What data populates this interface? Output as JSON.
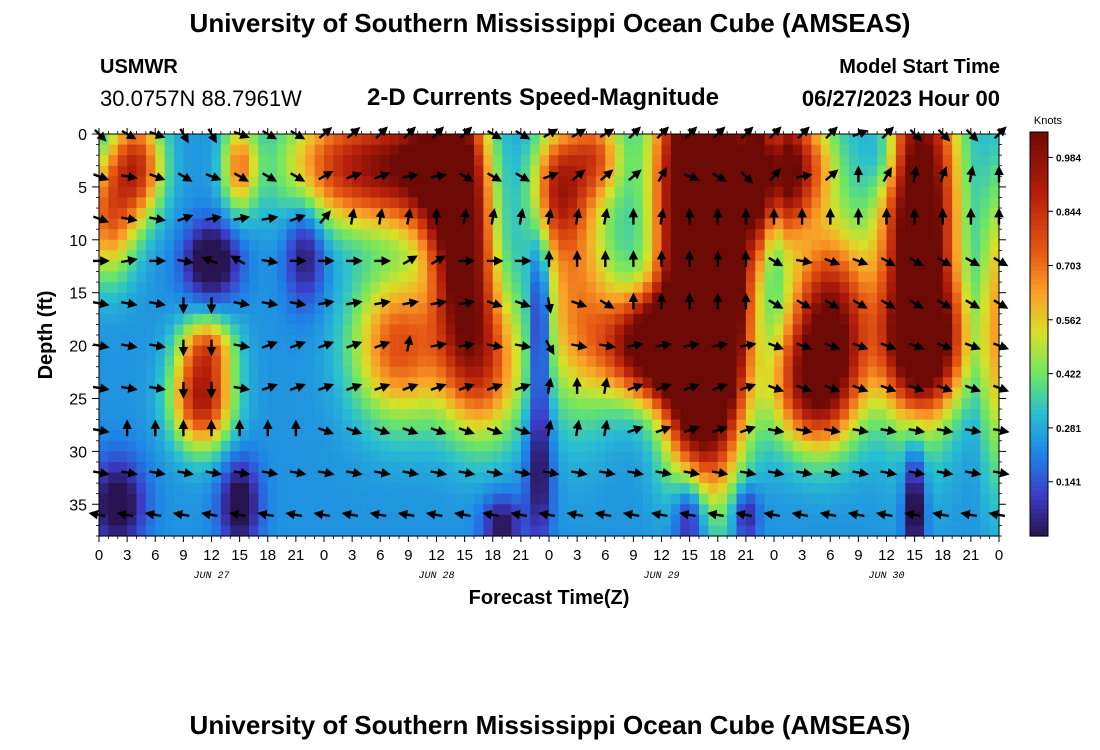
{
  "header": {
    "title": "University of Southern Mississippi Ocean Cube (AMSEAS)",
    "footer_title": "University of Southern Mississippi Ocean Cube (AMSEAS)",
    "station": "USMWR",
    "coords": "30.0757N  88.7961W",
    "subtitle": "2-D Currents Speed-Magnitude",
    "model_start_label": "Model Start Time",
    "model_start_value": "06/27/2023 Hour 00"
  },
  "chart_data": {
    "type": "heatmap",
    "title": "2-D Currents Speed-Magnitude",
    "xlabel": "Forecast Time(Z)",
    "ylabel": "Depth (ft)",
    "x_ticks": [
      "0",
      "3",
      "6",
      "9",
      "12",
      "15",
      "18",
      "21",
      "0",
      "3",
      "6",
      "9",
      "12",
      "15",
      "18",
      "21",
      "0",
      "3",
      "6",
      "9",
      "12",
      "15",
      "18",
      "21",
      "0",
      "3",
      "6",
      "9",
      "12",
      "15",
      "18",
      "21",
      "0"
    ],
    "date_labels": [
      {
        "label": "JUN 27",
        "hour": 12
      },
      {
        "label": "JUN 28",
        "hour": 36
      },
      {
        "label": "JUN 29",
        "hour": 60
      },
      {
        "label": "JUN 30",
        "hour": 84
      }
    ],
    "xlim_hours": [
      0,
      96
    ],
    "ylim_ft": [
      0,
      38
    ],
    "y_ticks": [
      0,
      5,
      10,
      15,
      20,
      25,
      30,
      35
    ],
    "colorbar": {
      "unit": "Knots",
      "min": 0.0,
      "max": 1.05,
      "tick_labels": [
        "0.984",
        "0.844",
        "0.703",
        "0.562",
        "0.422",
        "0.281",
        "0.141"
      ],
      "tick_values": [
        0.984,
        0.844,
        0.703,
        0.562,
        0.422,
        0.281,
        0.141
      ]
    },
    "speed_hotspots_knots": [
      {
        "t": 4,
        "d": 3,
        "v": 0.58,
        "st": 2.0,
        "sd": 3.5
      },
      {
        "t": 1,
        "d": 8,
        "v": 0.45,
        "st": 2.0,
        "sd": 4.0
      },
      {
        "t": 11,
        "d": 25,
        "v": 0.68,
        "st": 2.2,
        "sd": 3.2
      },
      {
        "t": 11.5,
        "d": 20,
        "v": 0.35,
        "st": 2.0,
        "sd": 2.0
      },
      {
        "t": 15,
        "d": 3,
        "v": 0.42,
        "st": 1.3,
        "sd": 3.0
      },
      {
        "t": 27,
        "d": 3,
        "v": 0.62,
        "st": 5.0,
        "sd": 4.0
      },
      {
        "t": 32,
        "d": 20,
        "v": 0.52,
        "st": 3.5,
        "sd": 5.0
      },
      {
        "t": 33,
        "d": 3,
        "v": 0.4,
        "st": 3.0,
        "sd": 4.0
      },
      {
        "t": 37.5,
        "d": 3,
        "v": 0.95,
        "st": 2.5,
        "sd": 5.5
      },
      {
        "t": 39,
        "d": 13,
        "v": 0.7,
        "st": 2.2,
        "sd": 6.0
      },
      {
        "t": 41,
        "d": 22,
        "v": 0.5,
        "st": 3.0,
        "sd": 5.0
      },
      {
        "t": 49,
        "d": 5,
        "v": 0.52,
        "st": 2.0,
        "sd": 4.0
      },
      {
        "t": 51,
        "d": 15,
        "v": 0.4,
        "st": 3.0,
        "sd": 8.0
      },
      {
        "t": 53,
        "d": 2,
        "v": 0.42,
        "st": 2.0,
        "sd": 3.0
      },
      {
        "t": 58,
        "d": 20,
        "v": 0.62,
        "st": 3.5,
        "sd": 3.5
      },
      {
        "t": 61,
        "d": 20,
        "v": 0.52,
        "st": 3.0,
        "sd": 3.0
      },
      {
        "t": 63.5,
        "d": 22,
        "v": 0.85,
        "st": 2.5,
        "sd": 7.0
      },
      {
        "t": 63.5,
        "d": 4,
        "v": 1.02,
        "st": 3.0,
        "sd": 9.0
      },
      {
        "t": 66,
        "d": 16,
        "v": 0.95,
        "st": 2.5,
        "sd": 10.0
      },
      {
        "t": 71,
        "d": 4,
        "v": 0.65,
        "st": 2.2,
        "sd": 5.0
      },
      {
        "t": 74,
        "d": 3,
        "v": 0.62,
        "st": 3.0,
        "sd": 4.0
      },
      {
        "t": 78,
        "d": 18,
        "v": 0.78,
        "st": 3.0,
        "sd": 6.0
      },
      {
        "t": 76,
        "d": 24,
        "v": 0.55,
        "st": 3.0,
        "sd": 4.0
      },
      {
        "t": 87.5,
        "d": 8,
        "v": 1.02,
        "st": 2.8,
        "sd": 11.0
      },
      {
        "t": 88,
        "d": 20,
        "v": 0.7,
        "st": 3.0,
        "sd": 4.0
      },
      {
        "t": 95.5,
        "d": 18,
        "v": 0.35,
        "st": 1.0,
        "sd": 10.0
      }
    ],
    "speed_lows_knots": [
      {
        "t": 12,
        "d": 12,
        "v": -0.35,
        "st": 2.0,
        "sd": 2.5
      },
      {
        "t": 22,
        "d": 11,
        "v": -0.25,
        "st": 1.5,
        "sd": 3.5
      },
      {
        "t": 47,
        "d": 18,
        "v": -0.35,
        "st": 0.8,
        "sd": 6.0
      },
      {
        "t": 47,
        "d": 32,
        "v": -0.25,
        "st": 1.0,
        "sd": 5.0
      },
      {
        "t": 72,
        "d": 4,
        "v": -0.35,
        "st": 0.8,
        "sd": 6.0
      },
      {
        "t": 84,
        "d": 2,
        "v": -0.2,
        "st": 1.5,
        "sd": 3.0
      },
      {
        "t": 2,
        "d": 35,
        "v": -0.3,
        "st": 2.0,
        "sd": 3.0
      },
      {
        "t": 15,
        "d": 35,
        "v": -0.3,
        "st": 1.5,
        "sd": 3.0
      },
      {
        "t": 43,
        "d": 37,
        "v": -0.25,
        "st": 1.5,
        "sd": 2.0
      },
      {
        "t": 63,
        "d": 36,
        "v": -0.3,
        "st": 1.2,
        "sd": 3.0
      },
      {
        "t": 69,
        "d": 36,
        "v": -0.25,
        "st": 1.0,
        "sd": 2.0
      },
      {
        "t": 87,
        "d": 35,
        "v": -0.35,
        "st": 0.8,
        "sd": 4.0
      }
    ],
    "vector_depths_ft": [
      0,
      4,
      8,
      12,
      16,
      20,
      24,
      28,
      32,
      36
    ],
    "vector_time_step_hours": 3,
    "vector_rows_direction_deg": [
      [
        -45,
        -30,
        -20,
        -60,
        -60,
        -20,
        -30,
        -30,
        40,
        40,
        45,
        45,
        45,
        45,
        -30,
        -30,
        30,
        30,
        30,
        45,
        45,
        45,
        45,
        45,
        45,
        45,
        45,
        20,
        45,
        -45,
        -45,
        -45,
        45
      ],
      [
        -20,
        -10,
        -20,
        -30,
        -20,
        -30,
        -30,
        -30,
        30,
        20,
        20,
        10,
        10,
        -30,
        -30,
        -30,
        20,
        40,
        40,
        40,
        60,
        -20,
        -30,
        -45,
        50,
        10,
        40,
        90,
        60,
        80,
        70,
        80,
        90
      ],
      [
        -20,
        -10,
        -10,
        20,
        10,
        10,
        10,
        20,
        50,
        80,
        80,
        80,
        90,
        80,
        80,
        80,
        80,
        80,
        80,
        90,
        80,
        90,
        90,
        90,
        90,
        90,
        90,
        90,
        90,
        90,
        90,
        90,
        90
      ],
      [
        0,
        10,
        0,
        -10,
        160,
        150,
        -10,
        0,
        0,
        0,
        0,
        30,
        30,
        0,
        0,
        0,
        90,
        90,
        90,
        90,
        90,
        90,
        90,
        90,
        -30,
        -10,
        -20,
        -20,
        -30,
        -30,
        -30,
        -30,
        -30
      ],
      [
        -10,
        -10,
        -10,
        -90,
        -90,
        -10,
        -10,
        -10,
        10,
        10,
        10,
        10,
        10,
        10,
        -20,
        -20,
        -80,
        -20,
        -30,
        90,
        90,
        90,
        90,
        90,
        -30,
        -30,
        -30,
        -30,
        -30,
        -30,
        -30,
        -30,
        -30
      ],
      [
        -10,
        -10,
        -10,
        -90,
        -90,
        -10,
        20,
        20,
        20,
        20,
        20,
        80,
        10,
        10,
        -10,
        -10,
        -60,
        -10,
        -10,
        10,
        10,
        10,
        10,
        10,
        -20,
        -20,
        -20,
        -20,
        -20,
        -20,
        -20,
        -20,
        -20
      ],
      [
        -10,
        -10,
        -10,
        -90,
        -90,
        -10,
        20,
        20,
        20,
        20,
        20,
        20,
        20,
        20,
        20,
        20,
        80,
        90,
        80,
        20,
        20,
        20,
        20,
        20,
        -20,
        -20,
        -20,
        -20,
        -20,
        -20,
        -20,
        -20,
        -20
      ],
      [
        -10,
        90,
        90,
        90,
        90,
        90,
        90,
        90,
        -20,
        -20,
        -20,
        -20,
        -20,
        -20,
        -20,
        -20,
        80,
        80,
        80,
        20,
        20,
        20,
        20,
        20,
        -10,
        -10,
        -10,
        -10,
        -10,
        -10,
        -10,
        -10,
        -10
      ],
      [
        -10,
        -10,
        -10,
        -10,
        -10,
        -10,
        -10,
        -10,
        -10,
        -10,
        -10,
        -10,
        -10,
        -10,
        -10,
        -10,
        -10,
        -10,
        -10,
        -10,
        -10,
        -10,
        -10,
        -10,
        -10,
        -10,
        -10,
        -10,
        -10,
        -10,
        -10,
        -10,
        -10
      ],
      [
        170,
        170,
        170,
        170,
        170,
        170,
        170,
        170,
        170,
        170,
        170,
        170,
        170,
        170,
        170,
        170,
        170,
        170,
        170,
        170,
        170,
        170,
        170,
        170,
        170,
        170,
        170,
        170,
        170,
        170,
        170,
        170,
        170
      ]
    ]
  }
}
